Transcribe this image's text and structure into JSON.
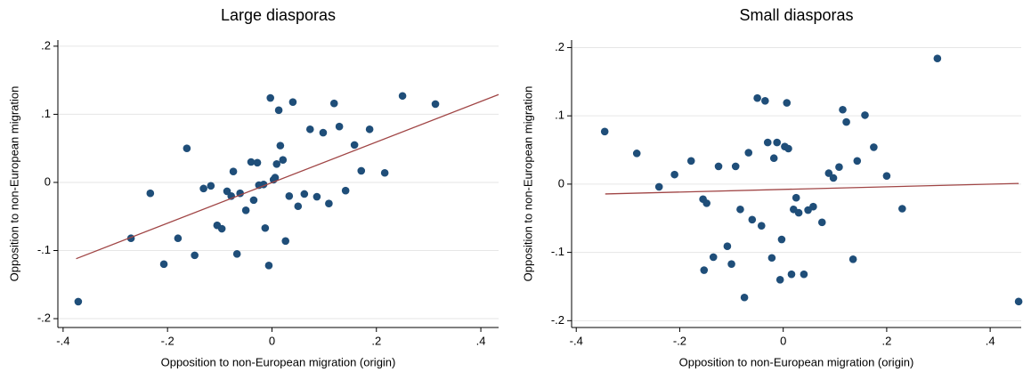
{
  "chart_data": [
    {
      "type": "scatter",
      "title": "Large diasporas",
      "x_label": "Opposition to non-European migration (origin)",
      "y_label": "Opposition to non-European migration",
      "color": "#1f4e79",
      "fit_color": "#a04545",
      "grid": true,
      "xlim": [
        -0.41,
        0.434
      ],
      "ylim": [
        -0.213,
        0.209
      ],
      "xticks": [
        {
          "value": -0.4,
          "label": "-.4"
        },
        {
          "value": -0.2,
          "label": "-.2"
        },
        0,
        {
          "value": 0.2,
          "label": ".2"
        },
        {
          "value": 0.4,
          "label": ".4"
        }
      ],
      "yticks": [
        {
          "value": -0.2,
          "label": "-.2"
        },
        {
          "value": -0.1,
          "label": "-.1"
        },
        0,
        {
          "value": 0.1,
          "label": ".1"
        },
        {
          "value": 0.2,
          "label": ".2"
        }
      ],
      "x": [
        -0.371,
        -0.27,
        -0.233,
        -0.207,
        -0.18,
        -0.163,
        -0.148,
        -0.131,
        -0.117,
        -0.105,
        -0.096,
        -0.086,
        -0.078,
        -0.074,
        -0.067,
        -0.061,
        -0.05,
        -0.04,
        -0.035,
        -0.028,
        -0.025,
        -0.016,
        -0.013,
        -0.006,
        -0.003,
        0.003,
        0.006,
        0.009,
        0.013,
        0.016,
        0.021,
        0.026,
        0.033,
        0.04,
        0.05,
        0.062,
        0.073,
        0.086,
        0.098,
        0.109,
        0.119,
        0.129,
        0.141,
        0.158,
        0.171,
        0.187,
        0.216,
        0.25,
        0.313
      ],
      "y": [
        -0.175,
        -0.082,
        -0.016,
        -0.12,
        -0.082,
        0.05,
        -0.107,
        -0.009,
        -0.005,
        -0.063,
        -0.068,
        -0.013,
        -0.02,
        0.016,
        -0.105,
        -0.016,
        -0.041,
        0.03,
        -0.026,
        0.029,
        -0.004,
        -0.003,
        -0.067,
        -0.122,
        0.124,
        0.004,
        0.007,
        0.027,
        0.106,
        0.054,
        0.033,
        -0.086,
        -0.02,
        0.118,
        -0.035,
        -0.017,
        0.078,
        -0.021,
        0.073,
        -0.031,
        0.116,
        0.082,
        -0.012,
        0.055,
        0.017,
        0.078,
        0.014,
        0.127,
        0.115
      ],
      "fit": {
        "x": [
          -0.375,
          0.434
        ],
        "y": [
          -0.112,
          0.129
        ]
      }
    },
    {
      "type": "scatter",
      "title": "Small diasporas",
      "x_label": "Opposition to non-European migration (origin)",
      "y_label": "Opposition to non-European migration",
      "color": "#1f4e79",
      "fit_color": "#a04545",
      "grid": true,
      "xlim": [
        -0.409,
        0.46
      ],
      "ylim": [
        -0.21,
        0.211
      ],
      "xticks": [
        {
          "value": -0.4,
          "label": "-.4"
        },
        {
          "value": -0.2,
          "label": "-.2"
        },
        0,
        {
          "value": 0.2,
          "label": ".2"
        },
        {
          "value": 0.4,
          "label": ".4"
        }
      ],
      "yticks": [
        {
          "value": -0.2,
          "label": "-.2"
        },
        {
          "value": -0.1,
          "label": "-.1"
        },
        0,
        {
          "value": 0.1,
          "label": ".1"
        },
        {
          "value": 0.2,
          "label": ".2"
        }
      ],
      "x": [
        -0.345,
        -0.283,
        -0.24,
        -0.21,
        -0.178,
        -0.155,
        -0.148,
        -0.153,
        -0.135,
        -0.125,
        -0.108,
        -0.1,
        -0.092,
        -0.083,
        -0.075,
        -0.067,
        -0.06,
        -0.05,
        -0.042,
        -0.035,
        -0.03,
        -0.022,
        -0.018,
        -0.012,
        -0.003,
        -0.006,
        0.003,
        0.007,
        0.01,
        0.016,
        0.02,
        0.025,
        0.03,
        0.04,
        0.048,
        0.058,
        0.075,
        0.088,
        0.097,
        0.108,
        0.115,
        0.122,
        0.175,
        0.135,
        0.143,
        0.158,
        0.2,
        0.23,
        0.298,
        0.455
      ],
      "y": [
        0.077,
        0.045,
        -0.004,
        0.014,
        0.034,
        -0.022,
        -0.028,
        -0.126,
        -0.107,
        0.026,
        -0.091,
        -0.117,
        0.026,
        -0.037,
        -0.166,
        0.046,
        -0.052,
        0.126,
        -0.061,
        0.122,
        0.061,
        -0.108,
        0.038,
        0.061,
        -0.081,
        -0.14,
        0.055,
        0.119,
        0.052,
        -0.132,
        -0.037,
        -0.02,
        -0.042,
        -0.132,
        -0.038,
        -0.033,
        -0.056,
        0.016,
        0.009,
        0.025,
        0.109,
        0.091,
        0.054,
        -0.11,
        0.034,
        0.101,
        0.012,
        -0.036,
        0.184,
        -0.172
      ],
      "fit": {
        "x": [
          -0.344,
          0.455
        ],
        "y": [
          -0.0144,
          0.001
        ]
      }
    }
  ]
}
